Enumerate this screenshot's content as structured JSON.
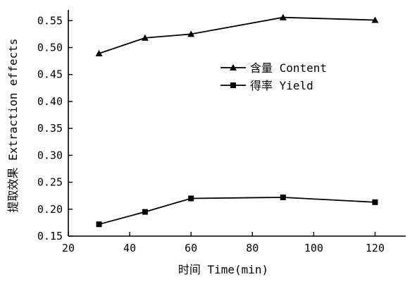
{
  "chart_data": {
    "type": "line",
    "xlabel": "时间 Time(min)",
    "ylabel": "提取效果 Extraction effects",
    "xlim": [
      20,
      130
    ],
    "ylim": [
      0.15,
      0.57
    ],
    "x_ticks": [
      "20",
      "40",
      "60",
      "80",
      "100",
      "120"
    ],
    "y_ticks": [
      "0.15",
      "0.20",
      "0.25",
      "0.30",
      "0.35",
      "0.40",
      "0.45",
      "0.50",
      "0.55"
    ],
    "legend_position": "upper-middle",
    "grid": false,
    "series": [
      {
        "name": "含量 Content",
        "marker": "triangle",
        "color": "#000000",
        "x": [
          30,
          45,
          60,
          90,
          120
        ],
        "y": [
          0.489,
          0.518,
          0.525,
          0.556,
          0.551
        ]
      },
      {
        "name": "得率 Yield",
        "marker": "square",
        "color": "#000000",
        "x": [
          30,
          45,
          60,
          90,
          120
        ],
        "y": [
          0.172,
          0.195,
          0.22,
          0.222,
          0.213
        ]
      }
    ]
  }
}
